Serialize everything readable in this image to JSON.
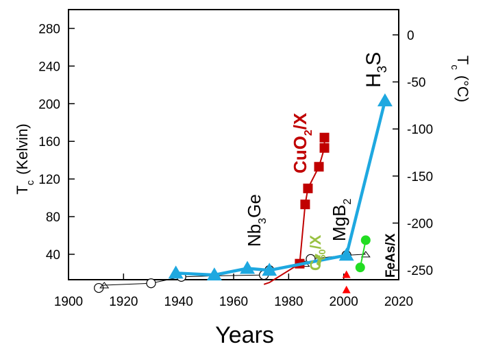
{
  "chart_data": {
    "type": "scatter",
    "title": "",
    "xlabel": "Years",
    "ylabel": "T",
    "ylabel_sub": "c",
    "ylabel_unit": "(Kelvin)",
    "y2label": "T",
    "y2label_sub": "c",
    "y2label_unit": "(°C)",
    "xlim": [
      1900,
      2020
    ],
    "ylim": [
      13,
      300
    ],
    "xticks": [
      1900,
      1920,
      1940,
      1960,
      1980,
      2000,
      2020
    ],
    "yticks": [
      40,
      80,
      120,
      160,
      200,
      240,
      280
    ],
    "y2ticks": [
      0,
      -50,
      -100,
      -150,
      -200,
      -250
    ],
    "grid": false,
    "colors": {
      "cuprate": "#c00000",
      "record": "#1ea8e0",
      "iron": "#22dd22",
      "fullerene": "#99c142",
      "conventional": "#000000",
      "heavy": "#ff0000"
    },
    "series": [
      {
        "kind": "conventional",
        "x": [
          1911,
          1913,
          1930,
          1941,
          1953,
          1971,
          1973,
          1986,
          1988,
          2001,
          2008
        ],
        "y": [
          4.2,
          7.2,
          9.2,
          16,
          17.1,
          18,
          23.2,
          30,
          35,
          39,
          40
        ],
        "marker": "open-circle"
      },
      {
        "kind": "cuprate",
        "x": [
          1971,
          1973,
          1984,
          1986,
          1987,
          1991,
          1993,
          1993
        ],
        "y": [
          8,
          10,
          30,
          93,
          110,
          133,
          153,
          164
        ],
        "marker": "square"
      },
      {
        "kind": "record",
        "x": [
          1939,
          1953,
          1965,
          1973,
          2001,
          2015
        ],
        "y": [
          20,
          18,
          25,
          23,
          39,
          203
        ],
        "marker": "triangle"
      },
      {
        "kind": "iron",
        "x": [
          2006,
          2008
        ],
        "y": [
          26,
          55
        ],
        "marker": "circle"
      },
      {
        "kind": "heavy",
        "x": [
          2001,
          2001
        ],
        "y": [
          2.3,
          18.5
        ],
        "marker": "triangle-small"
      },
      {
        "kind": "fullerene",
        "x": [
          1991
        ],
        "y": [
          33
        ],
        "marker": "none"
      }
    ],
    "labels": [
      {
        "text": "Nb",
        "sub": "3",
        "tail": "Ge",
        "color": "#000000"
      },
      {
        "text": "CuO",
        "sub": "2",
        "tail": "/X",
        "color": "#c00000"
      },
      {
        "text": "C",
        "sub": "60",
        "tail": "/X",
        "color": "#99c142"
      },
      {
        "text": "MgB",
        "sub": "2",
        "tail": "",
        "color": "#000000"
      },
      {
        "text": "H",
        "sub": "3",
        "tail": "S",
        "color": "#000000"
      },
      {
        "text": "FeAs/X",
        "sub": "",
        "tail": "",
        "color": "#000000"
      }
    ]
  }
}
